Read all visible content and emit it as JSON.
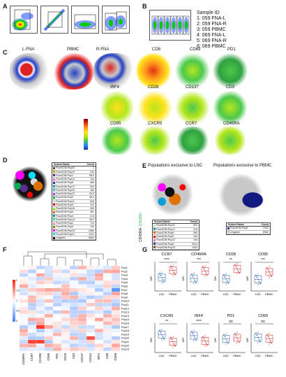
{
  "panels": {
    "a": "A",
    "b": "B",
    "c": "C",
    "d": "D",
    "e": "E",
    "f": "F",
    "g": "G"
  },
  "sample_id": {
    "title": "Sample ID",
    "items": [
      "1: 059 FNA-L",
      "2: 059 FNA-R",
      "3: 059 PBMC",
      "4: 069 FNA-L",
      "5: 069 FNA-R",
      "6: 069 PBMC"
    ]
  },
  "panel_c": {
    "sample_maps": [
      "L-FNA",
      "PBMC",
      "R-FNA"
    ],
    "markers_row1": [
      "CD8",
      "CD69",
      "PD1"
    ],
    "markers_row2": [
      "IRF4",
      "CD28",
      "CD137",
      "CD3"
    ],
    "markers_row3": [
      "CD95",
      "CXCR5",
      "CCR7",
      "CD45RA"
    ],
    "scale_colors": [
      "#8b0000",
      "#e03010",
      "#ff9a1c",
      "#ffe21c",
      "#b5e61d",
      "#4cc94c",
      "#2a8aff",
      "#2030a0"
    ]
  },
  "panel_d": {
    "header": {
      "name": "Subset Name",
      "count": "Count"
    },
    "rows": [
      {
        "name": "FlowSOM.Pop20",
        "count": "2",
        "color": "#7a4a2a"
      },
      {
        "name": "FlowSOM.Pop23",
        "count": "139",
        "color": "#c8a000"
      },
      {
        "name": "FlowSOM.Pop1",
        "count": "98.0",
        "color": "#5a2d8c"
      },
      {
        "name": "FlowSOM.Pop12",
        "count": "144",
        "color": "#ff66cc"
      },
      {
        "name": "FlowSOM.Pop8",
        "count": "466",
        "color": "#1e2fa0"
      },
      {
        "name": "FlowSOM.Pop17",
        "count": "394",
        "color": "#00a0d0"
      },
      {
        "name": "FlowSOM.Pop19",
        "count": "183",
        "color": "#39c4c4"
      },
      {
        "name": "FlowSOM.Pop22",
        "count": "28.0",
        "color": "#9a40ff"
      },
      {
        "name": "FlowSOM.Pop3",
        "count": "48.0",
        "color": "#00b050"
      },
      {
        "name": "FlowSOM.Pop11",
        "count": "626",
        "color": "#d8d8d8"
      },
      {
        "name": "FlowSOM.Pop9",
        "count": "137",
        "color": "#ff0000"
      },
      {
        "name": "FlowSOM.Pop16",
        "count": "369",
        "color": "#b0e000"
      },
      {
        "name": "FlowSOM.Pop6",
        "count": "361",
        "color": "#e07000"
      },
      {
        "name": "FlowSOM.Pop4",
        "count": "214",
        "color": "#009a80"
      },
      {
        "name": "FlowSOM.Pop13",
        "count": "38.0",
        "color": "#00ff66"
      },
      {
        "name": "FlowSOM.Pop2",
        "count": "724",
        "color": "#ff9ac0"
      },
      {
        "name": "FlowSOM.Pop5",
        "count": "159",
        "color": "#8a8a00"
      },
      {
        "name": "FlowSOM.Pop15",
        "count": "2060",
        "color": "#ff00ff"
      },
      {
        "name": "FlowSOM.Pop21",
        "count": "1241",
        "color": "#00e0ff"
      },
      {
        "name": "Ungated",
        "count": "8952",
        "color": "#000000"
      }
    ]
  },
  "panel_e": {
    "title_lnc": "Populations exclusive to LNC",
    "title_pbmc": "Populations exclusive to PBMC",
    "side_a": "CD45RA-",
    "side_b": "CXCR5+",
    "header": {
      "name": "Subset Name",
      "count": "Count"
    },
    "lnc_rows": [
      {
        "name": "FlowSOM.Pop11",
        "count": "833",
        "color": "#d8d8d8"
      },
      {
        "name": "FlowSOM.Pop17",
        "count": "218",
        "color": "#00a0d0"
      },
      {
        "name": "FlowSOM.Pop6",
        "count": "389",
        "color": "#e07000"
      },
      {
        "name": "FlowSOM.Pop9",
        "count": "153",
        "color": "#ff0000"
      },
      {
        "name": "FlowSOM.Pop12",
        "count": "196",
        "color": "#ff66cc"
      },
      {
        "name": "FlowSOM.Pop8",
        "count": "2014",
        "color": "#1e2fa0"
      },
      {
        "name": "FlowSOM.Pop20",
        "count": "1000",
        "color": "#7a4a2a"
      }
    ],
    "pbmc_rows": [
      {
        "name": "FlowSOM.Pop8",
        "count": "1241",
        "color": "#1e2fa0"
      },
      {
        "name": "Ungated",
        "count": "8952",
        "color": "#bbbbbb"
      }
    ]
  },
  "panel_f": {
    "rows": [
      "Pop1",
      "Pop2",
      "Pop3",
      "Pop4",
      "Pop5",
      "Pop6",
      "Pop7",
      "Pop8",
      "Pop9",
      "Pop10",
      "Pop11",
      "Pop12",
      "Pop13",
      "Pop14",
      "Pop15",
      "Pop16",
      "Pop17",
      "Pop18",
      "Pop19",
      "Pop20",
      "Pop21",
      "Pop22",
      "Pop23"
    ],
    "cols": [
      "CD45RA",
      "CCR7",
      "CXCR5",
      "CD95",
      "PD1",
      "CD28",
      "CD3",
      "CD137",
      "CD154",
      "IRF4",
      "CD8",
      "CD69"
    ],
    "legend_ticks": [
      "0",
      "0.5",
      "1",
      "1.5",
      "2"
    ]
  },
  "panel_g": {
    "markers": [
      {
        "title": "CCR7",
        "sig": "****",
        "lnc": 0.45,
        "pbmc": 0.72
      },
      {
        "title": "CD45RA",
        "sig": "***",
        "lnc": 0.42,
        "pbmc": 0.7
      },
      {
        "title": "CD28",
        "sig": "**",
        "lnc": 0.4,
        "pbmc": 0.78
      },
      {
        "title": "CD95",
        "sig": "***",
        "lnc": 0.38,
        "pbmc": 0.66
      },
      {
        "title": "CXCR5",
        "sig": "**",
        "lnc": 0.62,
        "pbmc": 0.35
      },
      {
        "title": "IRF4",
        "sig": "****",
        "lnc": 0.58,
        "pbmc": 0.38
      },
      {
        "title": "PD1",
        "sig": "ns",
        "lnc": 0.46,
        "pbmc": 0.5
      },
      {
        "title": "CD69",
        "sig": "ns",
        "lnc": 0.52,
        "pbmc": 0.47
      }
    ],
    "ylabel": "MFI",
    "xlabels": [
      "LNC",
      "PBMC"
    ]
  }
}
